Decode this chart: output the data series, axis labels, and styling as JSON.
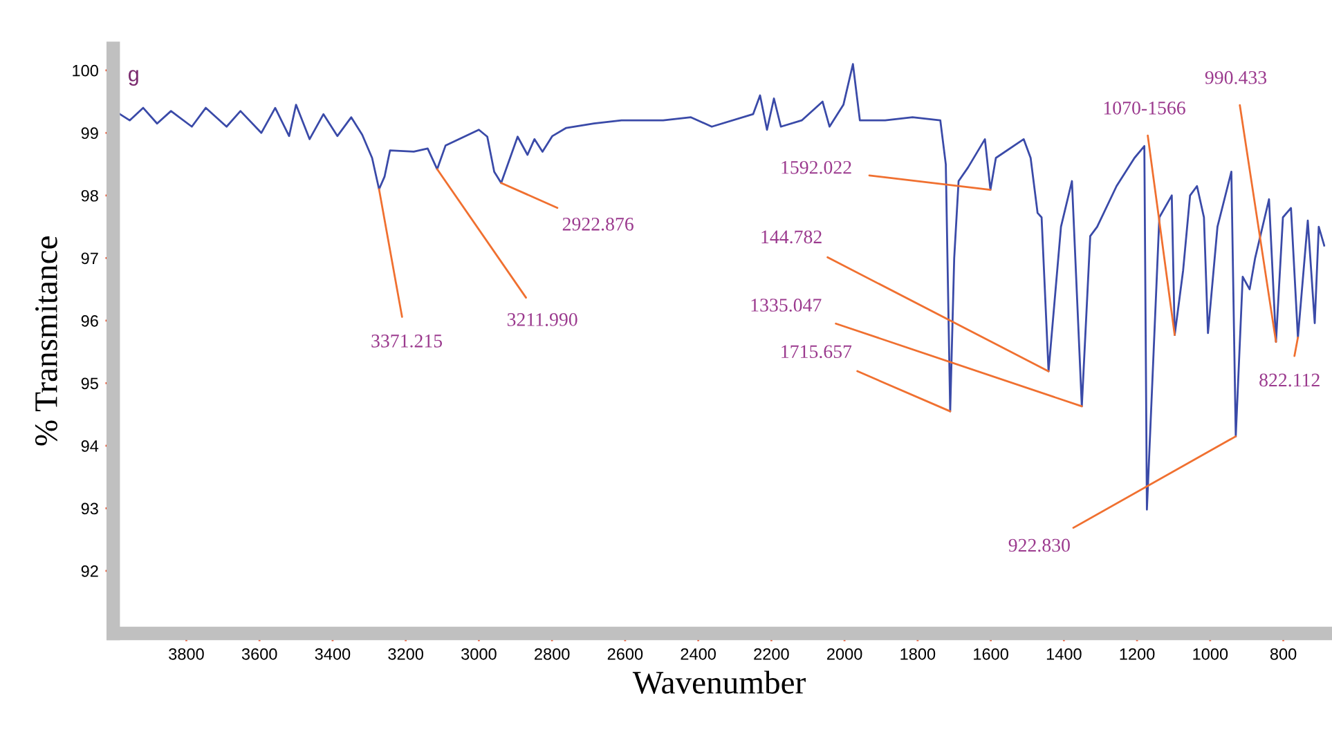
{
  "chart_data": {
    "type": "line",
    "xlabel": "Wavenumber",
    "ylabel": "% Transmitance",
    "x": [
      3995,
      3955,
      3918,
      3880,
      3842,
      3785,
      3747,
      3690,
      3652,
      3595,
      3557,
      3519,
      3500,
      3463,
      3425,
      3387,
      3349,
      3319,
      3292,
      3273,
      3258,
      3243,
      3178,
      3140,
      3114,
      3091,
      3000,
      2977,
      2958,
      2939,
      2894,
      2867,
      2848,
      2826,
      2799,
      2761,
      2685,
      2610,
      2496,
      2420,
      2363,
      2250,
      2231,
      2212,
      2193,
      2174,
      2117,
      2060,
      2041,
      2003,
      1977,
      1958,
      1889,
      1814,
      1738,
      1723,
      1711,
      1700,
      1688,
      1662,
      1616,
      1601,
      1586,
      1510,
      1491,
      1472,
      1461,
      1442,
      1408,
      1378,
      1351,
      1328,
      1309,
      1256,
      1207,
      1180,
      1173,
      1139,
      1105,
      1097,
      1074,
      1055,
      1036,
      1017,
      1006,
      980,
      942,
      930,
      911,
      892,
      877,
      839,
      820,
      801,
      779,
      760,
      733,
      714,
      703,
      688
    ],
    "series": [
      {
        "color": "#3a4aa8",
        "values": [
          99.35,
          99.2,
          99.4,
          99.15,
          99.35,
          99.1,
          99.4,
          99.1,
          99.35,
          99.0,
          99.4,
          98.95,
          99.45,
          98.9,
          99.3,
          98.95,
          99.25,
          98.97,
          98.6,
          98.1,
          98.3,
          98.72,
          98.7,
          98.75,
          98.42,
          98.8,
          99.05,
          98.94,
          98.38,
          98.2,
          98.94,
          98.65,
          98.9,
          98.7,
          98.95,
          99.08,
          99.15,
          99.2,
          99.2,
          99.25,
          99.1,
          99.3,
          99.6,
          99.05,
          99.55,
          99.1,
          99.2,
          99.5,
          99.1,
          99.45,
          100.1,
          99.2,
          99.2,
          99.25,
          99.2,
          98.5,
          94.55,
          97.0,
          98.23,
          98.45,
          98.9,
          98.09,
          98.6,
          98.9,
          98.6,
          97.72,
          97.65,
          95.19,
          97.5,
          98.23,
          94.63,
          97.35,
          97.5,
          98.15,
          98.6,
          98.79,
          92.98,
          97.65,
          98.0,
          95.77,
          96.8,
          98.0,
          98.15,
          97.65,
          95.8,
          97.5,
          98.38,
          94.15,
          96.7,
          96.5,
          97.0,
          97.94,
          95.66,
          97.65,
          97.8,
          95.73,
          97.6,
          95.96,
          97.5,
          97.2
        ]
      }
    ],
    "xlim": [
      4000,
      685
    ],
    "ylim": [
      91.0,
      100.35
    ],
    "xticks": [
      3800,
      3600,
      3400,
      3200,
      3000,
      2800,
      2600,
      2400,
      2200,
      2000,
      1800,
      1600,
      1400,
      1200,
      1000,
      800
    ],
    "yticks": [
      92,
      93,
      94,
      95,
      96,
      97,
      98,
      99,
      100
    ],
    "grid": false,
    "legend": false,
    "marker": "none",
    "line_style": "solid",
    "annotations": [
      "g",
      {
        "text": "3371.215",
        "x": 3273,
        "y": 98.1
      },
      {
        "text": "3211.990",
        "x": 3114,
        "y": 98.42
      },
      {
        "text": "2922.876",
        "x": 2939,
        "y": 98.2
      },
      {
        "text": "1592.022",
        "x": 1601,
        "y": 98.09
      },
      {
        "text": "144.782",
        "x": 1442,
        "y": 95.19
      },
      {
        "text": "1335.047",
        "x": 1351,
        "y": 94.63
      },
      {
        "text": "1715.657",
        "x": 1711,
        "y": 94.55
      },
      {
        "text": "922.830",
        "x": 930,
        "y": 94.15
      },
      {
        "text": "1070-1566",
        "x": 1097,
        "y": 95.77
      },
      {
        "text": "990.433",
        "x": 820,
        "y": 95.66
      },
      {
        "text": "822.112",
        "x": 760,
        "y": 95.73
      }
    ]
  }
}
